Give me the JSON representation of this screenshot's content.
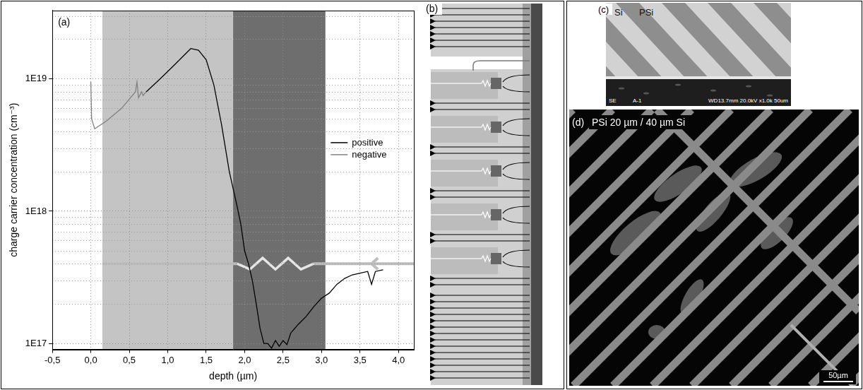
{
  "chart_data": {
    "type": "line",
    "panel": "(a)",
    "x_label": "depth (µm)",
    "y_label": "charge carrier concentration (cm⁻³)",
    "log": "y",
    "grid": true,
    "legend": "right",
    "xlim": [
      -0.5,
      4.2
    ],
    "xticks": [
      {
        "value": -0.5,
        "label": "-0,5"
      },
      {
        "value": 0,
        "label": "0,0"
      },
      {
        "value": 0.5,
        "label": "0,5"
      },
      {
        "value": 1,
        "label": "1,0"
      },
      {
        "value": 1.5,
        "label": "1,5"
      },
      {
        "value": 2,
        "label": "2,0"
      },
      {
        "value": 2.5,
        "label": "2,5"
      },
      {
        "value": 3,
        "label": "3,0"
      },
      {
        "value": 3.5,
        "label": "3,5"
      },
      {
        "value": 4,
        "label": "4,0"
      }
    ],
    "ylim": [
      9e+16,
      3.3e+19
    ],
    "yticks": [
      {
        "value": 1e+17,
        "label": "1E17"
      },
      {
        "value": 1e+18,
        "label": "1E18"
      },
      {
        "value": 1e+19,
        "label": "1E19"
      }
    ],
    "regions": [
      {
        "from": 0.15,
        "to": 1.85,
        "color": "#c4c4c4"
      },
      {
        "from": 1.85,
        "to": 3.05,
        "color": "#6e6e6e"
      }
    ],
    "series": [
      {
        "name": "positive",
        "color": "#000000",
        "x": [
          0.72,
          0.9,
          1.1,
          1.3,
          1.4,
          1.5,
          1.6,
          1.7,
          1.8,
          1.9,
          1.95,
          2.0,
          2.05,
          2.1,
          2.15,
          2.2,
          2.25,
          2.3,
          2.35,
          2.4,
          2.45,
          2.5,
          2.55,
          2.6,
          2.7,
          2.8,
          2.9,
          3.0,
          3.1,
          3.2,
          3.3,
          3.4,
          3.5,
          3.6,
          3.65,
          3.7,
          3.8
        ],
        "values": [
          8e+18,
          1e+19,
          1.3e+19,
          1.7e+19,
          1.65e+19,
          1.4e+19,
          9e+18,
          4.5e+18,
          2e+18,
          1.1e+18,
          8e+17,
          5e+17,
          4e+17,
          3e+17,
          2e+17,
          1.3e+17,
          1e+17,
          1e+17,
          9.2e+16,
          1.05e+17,
          9.5e+16,
          1.05e+17,
          9.8e+16,
          1.2e+17,
          1.4e+17,
          1.6e+17,
          1.9e+17,
          2.2e+17,
          2.4e+17,
          2.8e+17,
          3.1e+17,
          3.3e+17,
          3.4e+17,
          3.5e+17,
          2.8e+17,
          3.5e+17,
          3.6e+17
        ]
      },
      {
        "name": "negative",
        "color": "#808080",
        "x": [
          0,
          0.01,
          0.05,
          0.2,
          0.4,
          0.58,
          0.6,
          0.62,
          0.66,
          0.68,
          0.72
        ],
        "values": [
          9.5e+18,
          5e+18,
          4.2e+18,
          4.8e+18,
          6e+18,
          8e+18,
          9.5e+18,
          7.2e+18,
          8e+18,
          7.5e+18,
          8e+18
        ]
      }
    ]
  },
  "panels": {
    "b": {
      "letter": "(b)"
    },
    "c": {
      "letter": "(c)",
      "labels": [
        "Si",
        "PSi"
      ],
      "footer": [
        "SE",
        "A-1",
        "WD13.7mm 20.0kV x1.0k 50um"
      ]
    },
    "d": {
      "letter": "(d)",
      "title": "PSi 20 µm / 40 µm Si",
      "scale_bar": "50µm"
    }
  }
}
